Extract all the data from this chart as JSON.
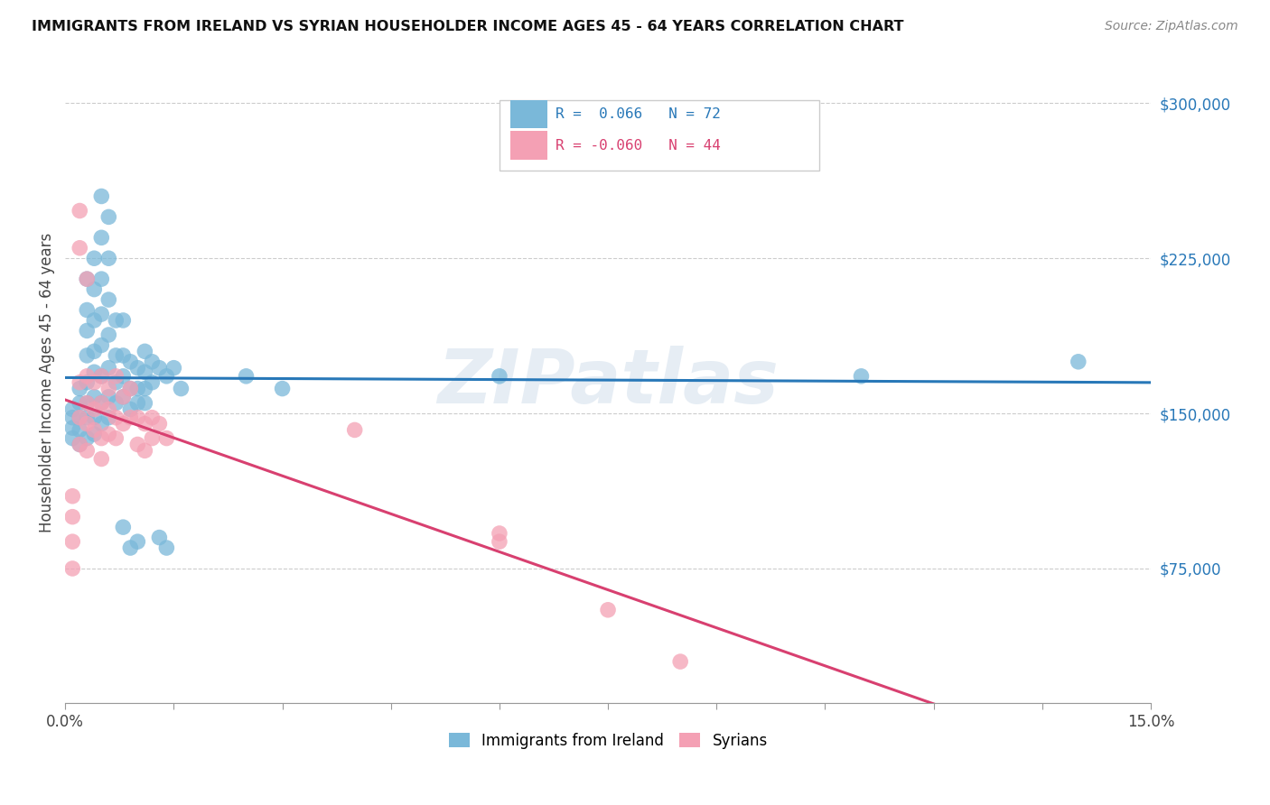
{
  "title": "IMMIGRANTS FROM IRELAND VS SYRIAN HOUSEHOLDER INCOME AGES 45 - 64 YEARS CORRELATION CHART",
  "source": "Source: ZipAtlas.com",
  "ylabel": "Householder Income Ages 45 - 64 years",
  "xlim": [
    0.0,
    0.15
  ],
  "ylim": [
    10000,
    320000
  ],
  "xticks": [
    0.0,
    0.015,
    0.03,
    0.045,
    0.06,
    0.075,
    0.09,
    0.105,
    0.12,
    0.135,
    0.15
  ],
  "xticklabels_show": {
    "0.0": "0.0%",
    "0.15": "15.0%"
  },
  "yticks_right": [
    75000,
    150000,
    225000,
    300000
  ],
  "yticklabels_right": [
    "$75,000",
    "$150,000",
    "$225,000",
    "$300,000"
  ],
  "ireland_color": "#7ab8d9",
  "syria_color": "#f4a0b4",
  "ireland_line_color": "#2878b8",
  "syria_line_color": "#d84070",
  "watermark": "ZIPatlas",
  "ireland_scatter": [
    [
      0.001,
      148000
    ],
    [
      0.001,
      152000
    ],
    [
      0.001,
      143000
    ],
    [
      0.001,
      138000
    ],
    [
      0.002,
      162000
    ],
    [
      0.002,
      155000
    ],
    [
      0.002,
      148000
    ],
    [
      0.002,
      142000
    ],
    [
      0.002,
      135000
    ],
    [
      0.003,
      215000
    ],
    [
      0.003,
      200000
    ],
    [
      0.003,
      190000
    ],
    [
      0.003,
      178000
    ],
    [
      0.003,
      165000
    ],
    [
      0.003,
      155000
    ],
    [
      0.003,
      148000
    ],
    [
      0.003,
      138000
    ],
    [
      0.004,
      225000
    ],
    [
      0.004,
      210000
    ],
    [
      0.004,
      195000
    ],
    [
      0.004,
      180000
    ],
    [
      0.004,
      170000
    ],
    [
      0.004,
      158000
    ],
    [
      0.004,
      148000
    ],
    [
      0.004,
      140000
    ],
    [
      0.005,
      255000
    ],
    [
      0.005,
      235000
    ],
    [
      0.005,
      215000
    ],
    [
      0.005,
      198000
    ],
    [
      0.005,
      183000
    ],
    [
      0.005,
      168000
    ],
    [
      0.005,
      155000
    ],
    [
      0.005,
      145000
    ],
    [
      0.006,
      245000
    ],
    [
      0.006,
      225000
    ],
    [
      0.006,
      205000
    ],
    [
      0.006,
      188000
    ],
    [
      0.006,
      172000
    ],
    [
      0.006,
      158000
    ],
    [
      0.006,
      148000
    ],
    [
      0.007,
      195000
    ],
    [
      0.007,
      178000
    ],
    [
      0.007,
      165000
    ],
    [
      0.007,
      155000
    ],
    [
      0.008,
      195000
    ],
    [
      0.008,
      178000
    ],
    [
      0.008,
      168000
    ],
    [
      0.008,
      158000
    ],
    [
      0.008,
      95000
    ],
    [
      0.009,
      175000
    ],
    [
      0.009,
      162000
    ],
    [
      0.009,
      152000
    ],
    [
      0.009,
      85000
    ],
    [
      0.01,
      172000
    ],
    [
      0.01,
      162000
    ],
    [
      0.01,
      155000
    ],
    [
      0.01,
      88000
    ],
    [
      0.011,
      180000
    ],
    [
      0.011,
      170000
    ],
    [
      0.011,
      162000
    ],
    [
      0.011,
      155000
    ],
    [
      0.012,
      175000
    ],
    [
      0.012,
      165000
    ],
    [
      0.013,
      172000
    ],
    [
      0.013,
      90000
    ],
    [
      0.014,
      168000
    ],
    [
      0.014,
      85000
    ],
    [
      0.015,
      172000
    ],
    [
      0.016,
      162000
    ],
    [
      0.025,
      168000
    ],
    [
      0.03,
      162000
    ],
    [
      0.06,
      168000
    ],
    [
      0.11,
      168000
    ],
    [
      0.14,
      175000
    ]
  ],
  "syria_scatter": [
    [
      0.001,
      110000
    ],
    [
      0.001,
      100000
    ],
    [
      0.001,
      88000
    ],
    [
      0.001,
      75000
    ],
    [
      0.002,
      248000
    ],
    [
      0.002,
      230000
    ],
    [
      0.002,
      165000
    ],
    [
      0.002,
      148000
    ],
    [
      0.002,
      135000
    ],
    [
      0.003,
      215000
    ],
    [
      0.003,
      168000
    ],
    [
      0.003,
      155000
    ],
    [
      0.003,
      145000
    ],
    [
      0.003,
      132000
    ],
    [
      0.004,
      165000
    ],
    [
      0.004,
      152000
    ],
    [
      0.004,
      142000
    ],
    [
      0.005,
      168000
    ],
    [
      0.005,
      155000
    ],
    [
      0.005,
      138000
    ],
    [
      0.005,
      128000
    ],
    [
      0.006,
      162000
    ],
    [
      0.006,
      152000
    ],
    [
      0.006,
      140000
    ],
    [
      0.007,
      168000
    ],
    [
      0.007,
      148000
    ],
    [
      0.007,
      138000
    ],
    [
      0.008,
      158000
    ],
    [
      0.008,
      145000
    ],
    [
      0.009,
      162000
    ],
    [
      0.009,
      148000
    ],
    [
      0.01,
      148000
    ],
    [
      0.01,
      135000
    ],
    [
      0.011,
      145000
    ],
    [
      0.011,
      132000
    ],
    [
      0.012,
      148000
    ],
    [
      0.012,
      138000
    ],
    [
      0.013,
      145000
    ],
    [
      0.014,
      138000
    ],
    [
      0.04,
      142000
    ],
    [
      0.06,
      92000
    ],
    [
      0.06,
      88000
    ],
    [
      0.075,
      55000
    ],
    [
      0.085,
      30000
    ]
  ]
}
